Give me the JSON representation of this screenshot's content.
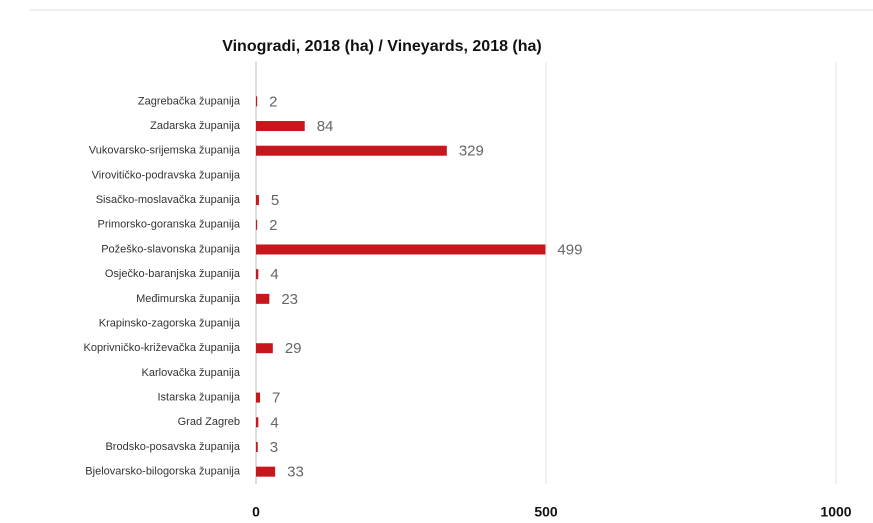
{
  "chart_data": {
    "type": "hbar",
    "title": "Vinogradi, 2018 (ha) / Vineyards, 2018 (ha)",
    "categories": [
      "Zagrebačka županija",
      "Zadarska županija",
      "Vukovarsko-srijemska županija",
      "Virovitičko-podravska županija",
      "Sisačko-moslavačka županija",
      "Primorsko-goranska županija",
      "Požeško-slavonska županija",
      "Osječko-baranjska županija",
      "Međimurska županija",
      "Krapinsko-zagorska županija",
      "Koprivničko-križevačka županija",
      "Karlovačka županija",
      "Istarska županija",
      "Grad Zagreb",
      "Brodsko-posavska županija",
      "Bjelovarsko-bilogorska županija"
    ],
    "values": [
      2,
      84,
      329,
      null,
      5,
      2,
      499,
      4,
      23,
      null,
      29,
      null,
      7,
      4,
      3,
      33
    ],
    "color": "#c8161d",
    "xlim": [
      0,
      1000
    ],
    "xticks": [
      0,
      500,
      1000
    ],
    "grid": true
  }
}
